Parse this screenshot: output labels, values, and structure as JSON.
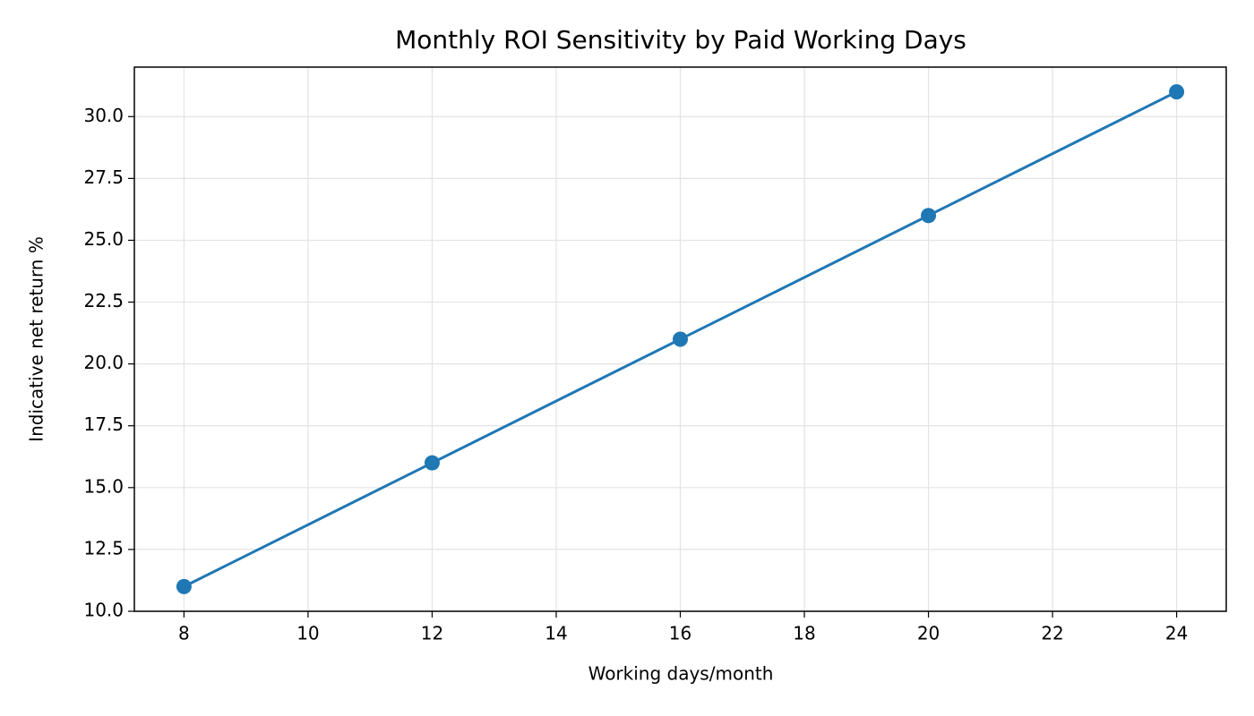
{
  "chart_data": {
    "type": "line",
    "title": "Monthly ROI Sensitivity by Paid Working Days",
    "x_label": "Working days/month",
    "y_label": "Indicative net return %",
    "x": [
      8,
      12,
      16,
      20,
      24
    ],
    "values": [
      11,
      16,
      21,
      26,
      31
    ],
    "color": "#1f77b4",
    "xlim": [
      7.2,
      24.8
    ],
    "xticks": [
      8,
      10,
      12,
      14,
      16,
      18,
      20,
      22,
      24
    ],
    "ylim": [
      10,
      32
    ],
    "yticks": [
      {
        "value": 10,
        "label": "10.0"
      },
      {
        "value": 12.5,
        "label": "12.5"
      },
      {
        "value": 15,
        "label": "15.0"
      },
      {
        "value": 17.5,
        "label": "17.5"
      },
      {
        "value": 20,
        "label": "20.0"
      },
      {
        "value": 22.5,
        "label": "22.5"
      },
      {
        "value": 25,
        "label": "25.0"
      },
      {
        "value": 27.5,
        "label": "27.5"
      },
      {
        "value": 30,
        "label": "30.0"
      }
    ],
    "grid": true
  }
}
